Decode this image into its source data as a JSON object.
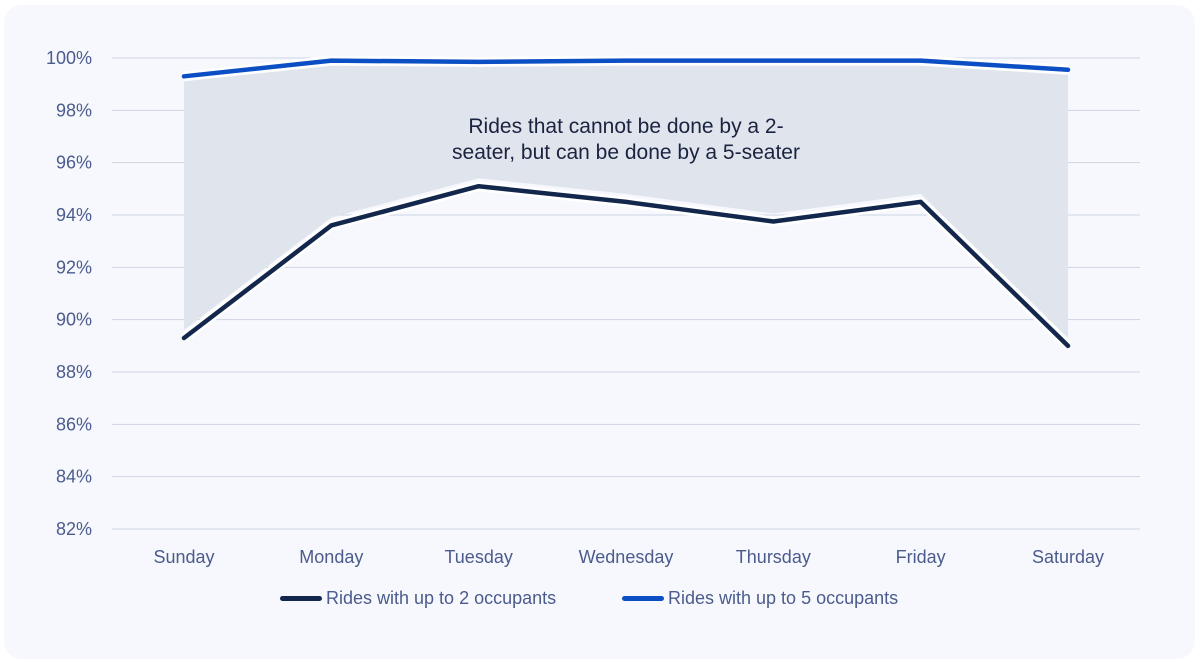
{
  "chart_data": {
    "type": "line",
    "categories": [
      "Sunday",
      "Monday",
      "Tuesday",
      "Wednesday",
      "Thursday",
      "Friday",
      "Saturday"
    ],
    "series": [
      {
        "name": "Rides with up to 2 occupants",
        "color": "#13274d",
        "values": [
          89.3,
          93.6,
          95.1,
          94.5,
          93.75,
          94.5,
          89.0
        ]
      },
      {
        "name": "Rides with up to 5 occupants",
        "color": "#0c4fc4",
        "values": [
          99.3,
          99.9,
          99.85,
          99.9,
          99.9,
          99.9,
          99.55
        ]
      }
    ],
    "ylim": [
      82,
      100
    ],
    "yticks": [
      "82%",
      "84%",
      "86%",
      "88%",
      "90%",
      "92%",
      "94%",
      "96%",
      "98%",
      "100%"
    ],
    "grid": true,
    "legend": "bottom",
    "area_between_series": {
      "color": "#e0e4ec",
      "label_lines": [
        "Rides that cannot be done by a 2-",
        "seater, but can be done by a 5-seater"
      ]
    }
  }
}
